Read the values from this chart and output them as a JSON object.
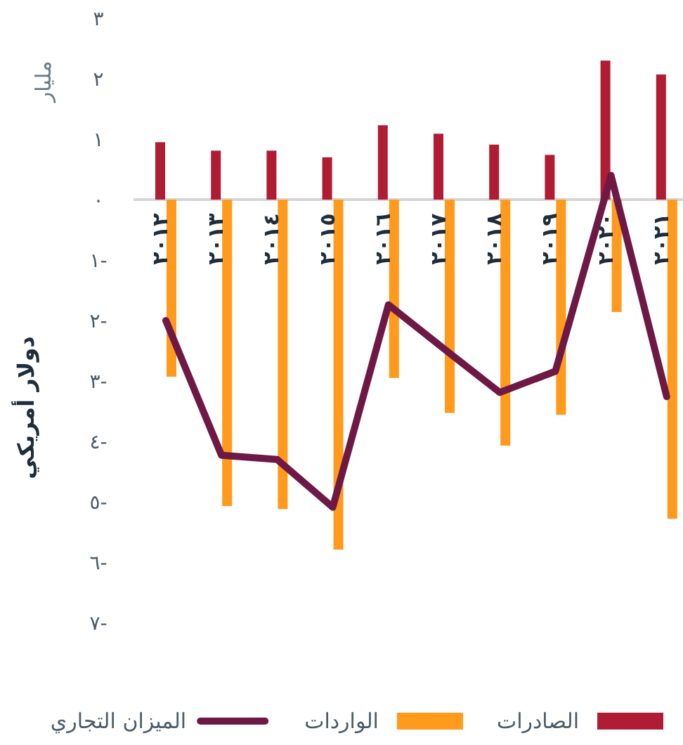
{
  "chart_data": {
    "type": "bar",
    "ylabel": "دولار أمريكي",
    "annotations": [
      "مليار"
    ],
    "categories": [
      "٢٠١٢",
      "٢٠١٣",
      "٢٠١٤",
      "٢٠١٥",
      "٢٠١٦",
      "٢٠١٧",
      "٢٠١٨",
      "٢٠١٩",
      "٢٠٢٠",
      "٢٠٢١"
    ],
    "series": [
      {
        "name": "الصادرات",
        "color": "#b01c34",
        "values": [
          0.95,
          0.81,
          0.81,
          0.7,
          1.23,
          1.09,
          0.91,
          0.74,
          2.3,
          2.07
        ]
      },
      {
        "name": "الواردات",
        "color": "#ff9a1c",
        "values": [
          -2.93,
          -5.07,
          -5.12,
          -5.79,
          -2.95,
          -3.53,
          -4.07,
          -3.56,
          -1.86,
          -5.28
        ]
      },
      {
        "name": "الميزان التجاري",
        "color": "#6e1846",
        "type": "line",
        "values": [
          -2.0,
          -4.23,
          -4.3,
          -5.09,
          -1.74,
          -2.47,
          -3.19,
          -2.84,
          0.4,
          -3.26
        ]
      }
    ],
    "ylim": [
      -7,
      3
    ],
    "yticks": [
      {
        "value": 3,
        "label": "٣"
      },
      {
        "value": 2,
        "label": "٢"
      },
      {
        "value": 1,
        "label": "١"
      },
      {
        "value": 0,
        "label": "٠"
      },
      {
        "value": -1,
        "label": "١-"
      },
      {
        "value": -2,
        "label": "٢-"
      },
      {
        "value": -3,
        "label": "٣-"
      },
      {
        "value": -4,
        "label": "٤-"
      },
      {
        "value": -5,
        "label": "٥-"
      },
      {
        "value": -6,
        "label": "٦-"
      },
      {
        "value": -7,
        "label": "٧-"
      }
    ],
    "grid": false,
    "legend": "bottom"
  }
}
